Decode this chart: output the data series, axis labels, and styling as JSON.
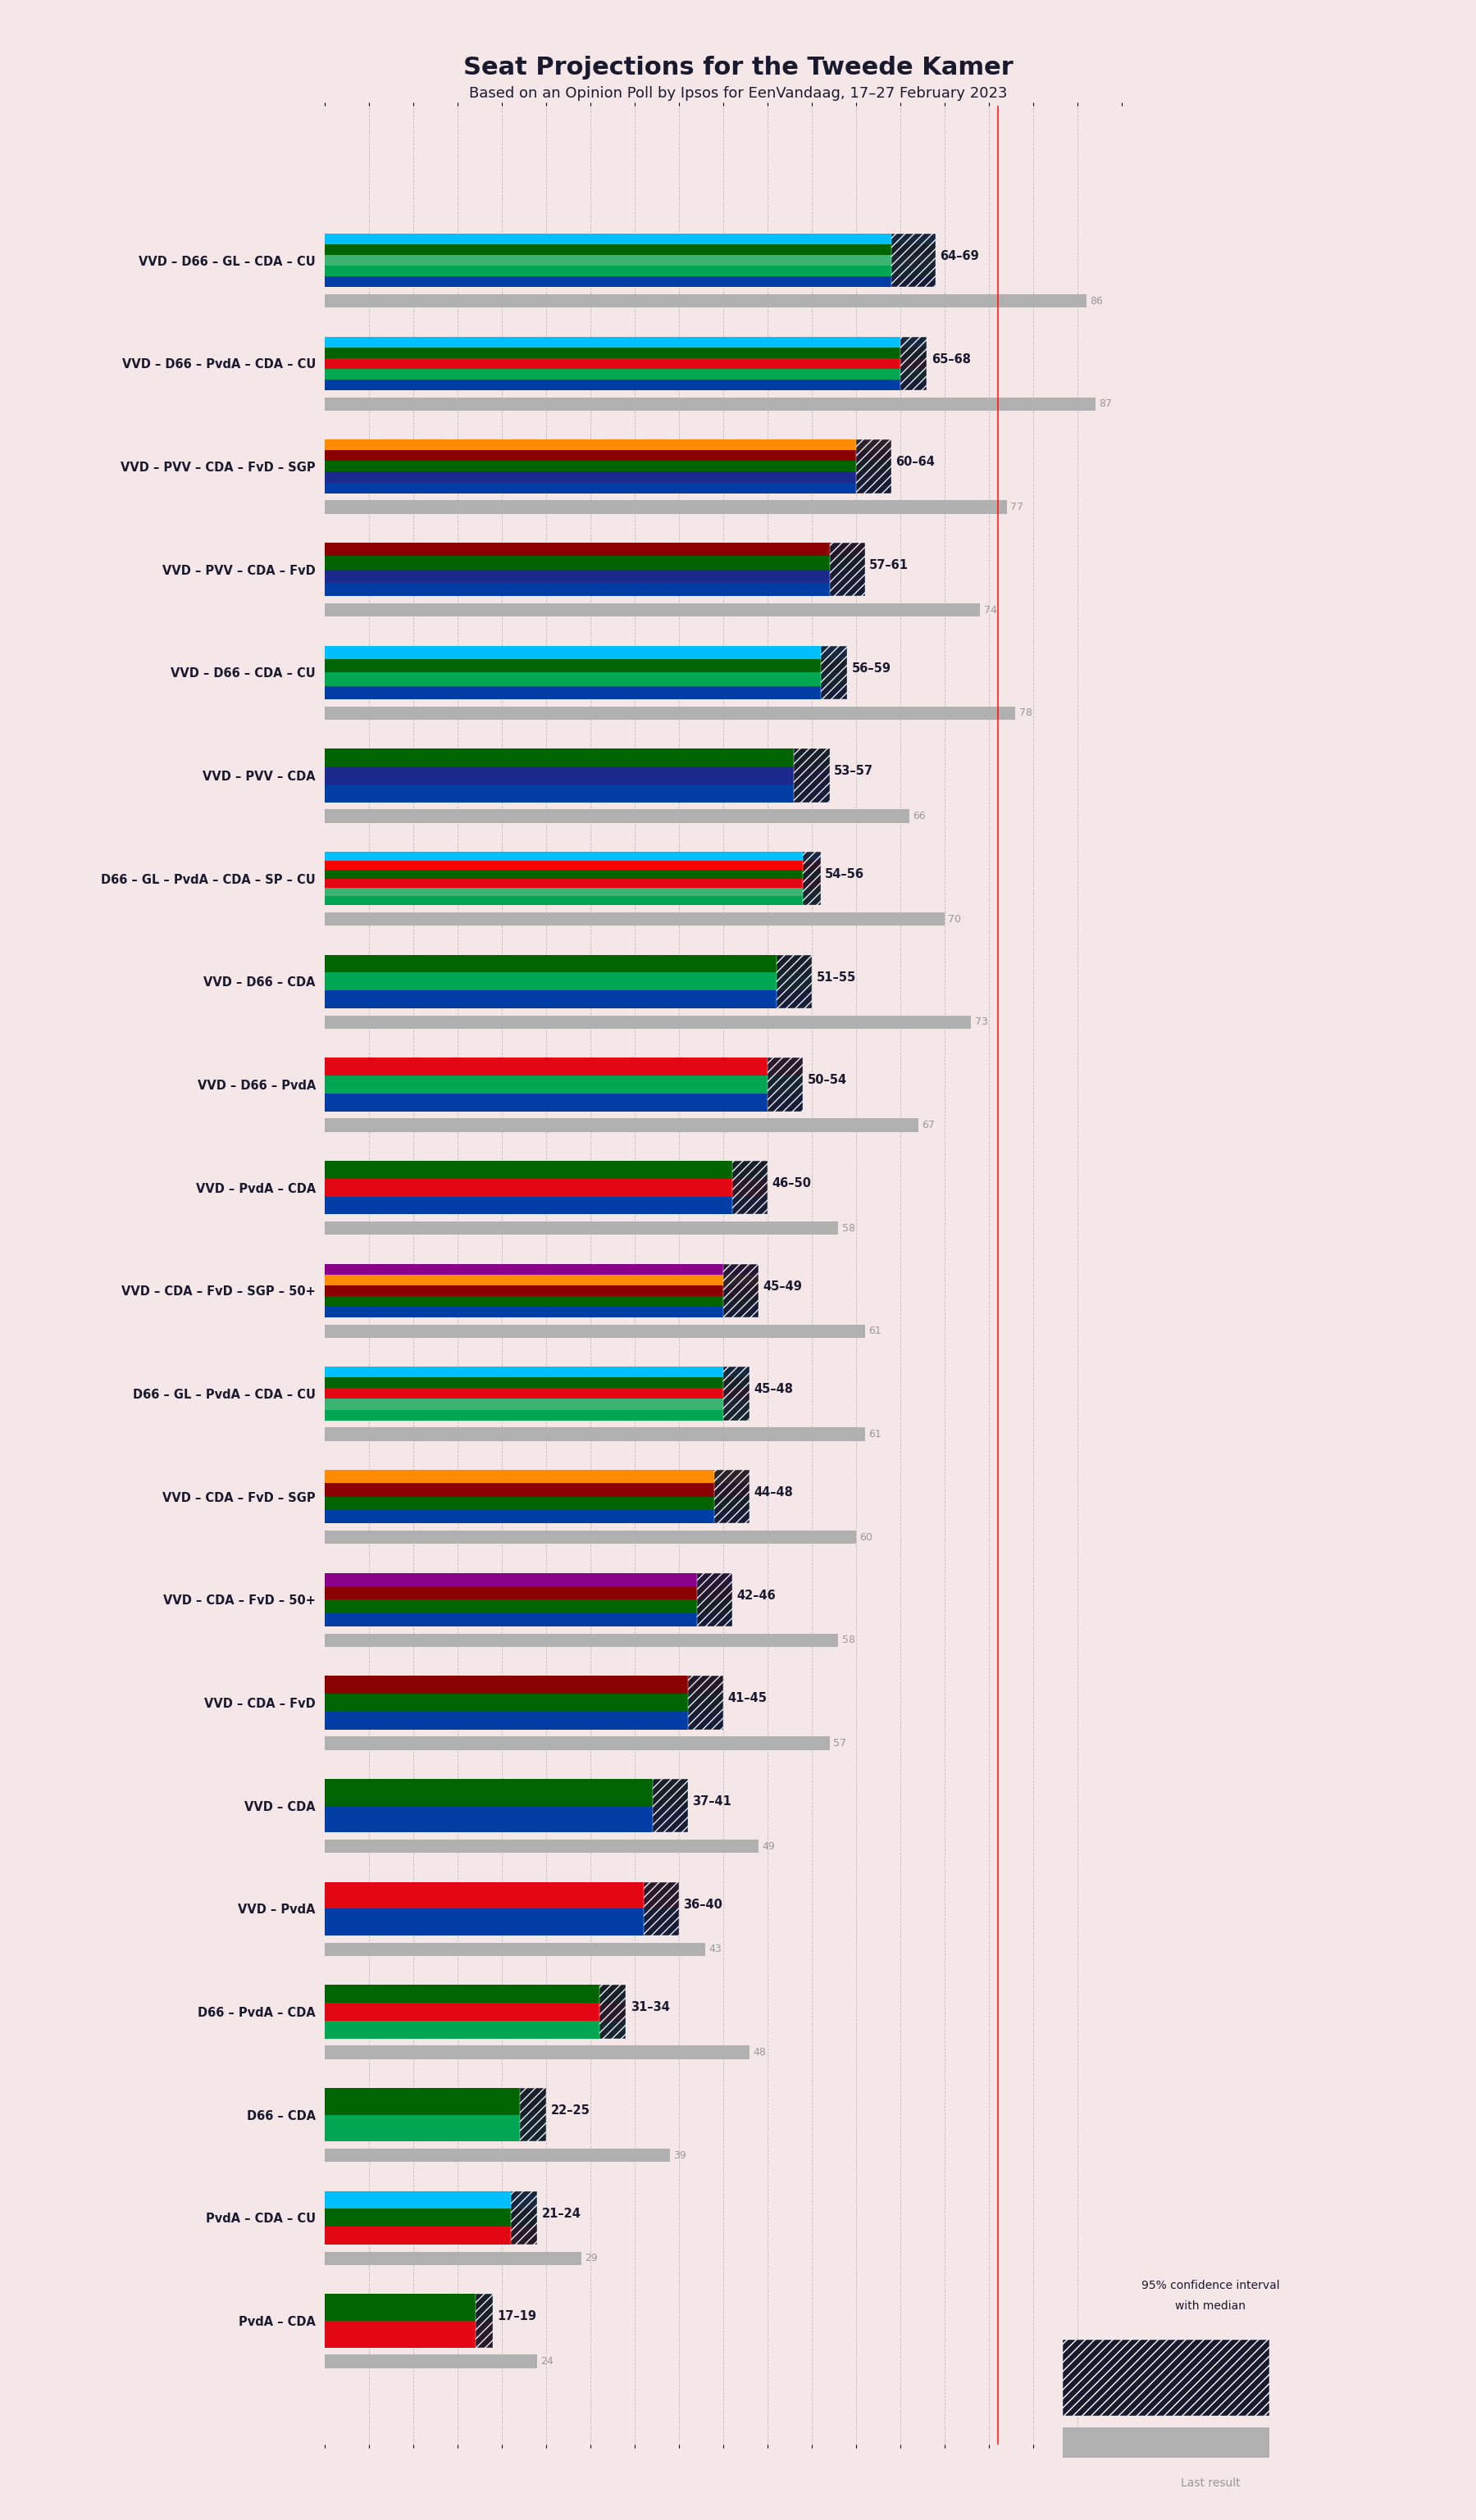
{
  "title": "Seat Projections for the Tweede Kamer",
  "subtitle": "Based on an Opinion Poll by Ipsos for EenVandaag, 17–27 February 2023",
  "background_color": "#f5e6e8",
  "coalitions": [
    {
      "name": "VVD – D66 – GL – CDA – CU",
      "low": 64,
      "high": 69,
      "last": 86,
      "parties": [
        "VVD",
        "D66",
        "GL",
        "CDA",
        "CU"
      ]
    },
    {
      "name": "VVD – D66 – PvdA – CDA – CU",
      "low": 65,
      "high": 68,
      "last": 87,
      "parties": [
        "VVD",
        "D66",
        "PvdA",
        "CDA",
        "CU"
      ]
    },
    {
      "name": "VVD – PVV – CDA – FvD – SGP",
      "low": 60,
      "high": 64,
      "last": 77,
      "parties": [
        "VVD",
        "PVV",
        "CDA",
        "FvD",
        "SGP"
      ]
    },
    {
      "name": "VVD – PVV – CDA – FvD",
      "low": 57,
      "high": 61,
      "last": 74,
      "parties": [
        "VVD",
        "PVV",
        "CDA",
        "FvD"
      ]
    },
    {
      "name": "VVD – D66 – CDA – CU",
      "low": 56,
      "high": 59,
      "last": 78,
      "parties": [
        "VVD",
        "D66",
        "CDA",
        "CU"
      ]
    },
    {
      "name": "VVD – PVV – CDA",
      "low": 53,
      "high": 57,
      "last": 66,
      "parties": [
        "VVD",
        "PVV",
        "CDA"
      ]
    },
    {
      "name": "D66 – GL – PvdA – CDA – SP – CU",
      "low": 54,
      "high": 56,
      "last": 70,
      "parties": [
        "D66",
        "GL",
        "PvdA",
        "CDA",
        "SP",
        "CU"
      ]
    },
    {
      "name": "VVD – D66 – CDA",
      "low": 51,
      "high": 55,
      "last": 73,
      "parties": [
        "VVD",
        "D66",
        "CDA"
      ]
    },
    {
      "name": "VVD – D66 – PvdA",
      "low": 50,
      "high": 54,
      "last": 67,
      "parties": [
        "VVD",
        "D66",
        "PvdA"
      ]
    },
    {
      "name": "VVD – PvdA – CDA",
      "low": 46,
      "high": 50,
      "last": 58,
      "parties": [
        "VVD",
        "PvdA",
        "CDA"
      ]
    },
    {
      "name": "VVD – CDA – FvD – SGP – 50+",
      "low": 45,
      "high": 49,
      "last": 61,
      "parties": [
        "VVD",
        "CDA",
        "FvD",
        "SGP",
        "50+"
      ]
    },
    {
      "name": "D66 – GL – PvdA – CDA – CU",
      "low": 45,
      "high": 48,
      "last": 61,
      "parties": [
        "D66",
        "GL",
        "PvdA",
        "CDA",
        "CU"
      ]
    },
    {
      "name": "VVD – CDA – FvD – SGP",
      "low": 44,
      "high": 48,
      "last": 60,
      "parties": [
        "VVD",
        "CDA",
        "FvD",
        "SGP"
      ]
    },
    {
      "name": "VVD – CDA – FvD – 50+",
      "low": 42,
      "high": 46,
      "last": 58,
      "parties": [
        "VVD",
        "CDA",
        "FvD",
        "50+"
      ]
    },
    {
      "name": "VVD – CDA – FvD",
      "low": 41,
      "high": 45,
      "last": 57,
      "parties": [
        "VVD",
        "CDA",
        "FvD"
      ]
    },
    {
      "name": "VVD – CDA",
      "low": 37,
      "high": 41,
      "last": 49,
      "parties": [
        "VVD",
        "CDA"
      ]
    },
    {
      "name": "VVD – PvdA",
      "low": 36,
      "high": 40,
      "last": 43,
      "parties": [
        "VVD",
        "PvdA"
      ]
    },
    {
      "name": "D66 – PvdA – CDA",
      "low": 31,
      "high": 34,
      "last": 48,
      "parties": [
        "D66",
        "PvdA",
        "CDA"
      ]
    },
    {
      "name": "D66 – CDA",
      "low": 22,
      "high": 25,
      "last": 39,
      "parties": [
        "D66",
        "CDA"
      ]
    },
    {
      "name": "PvdA – CDA – CU",
      "low": 21,
      "high": 24,
      "last": 29,
      "parties": [
        "PvdA",
        "CDA",
        "CU"
      ]
    },
    {
      "name": "PvdA – CDA",
      "low": 17,
      "high": 19,
      "last": 24,
      "parties": [
        "PvdA",
        "CDA"
      ]
    }
  ],
  "party_colors": {
    "VVD": "#003DA5",
    "D66": "#00A651",
    "GL": "#3CB371",
    "CDA": "#006400",
    "CU": "#00BFFF",
    "PvdA": "#E30613",
    "PVV": "#1B2A8C",
    "FvD": "#8B0000",
    "SGP": "#FF8C00",
    "SP": "#FF0000",
    "50+": "#8B008B"
  },
  "majority_line": 76,
  "xmax": 90,
  "hatch_color": "#1a1a2e",
  "last_bar_color": "#b0b0b0",
  "label_color": "#1a1a2e",
  "last_label_color": "#999999",
  "grid_color": "#aaaaaa",
  "bar_height": 0.52,
  "last_bar_height": 0.13,
  "last_bar_gap": 0.07
}
